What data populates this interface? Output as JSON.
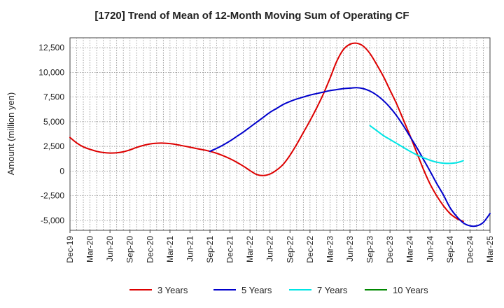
{
  "chart_data": {
    "type": "line",
    "title": "[1720]  Trend of Mean of 12-Month Moving Sum of Operating CF",
    "xlabel": "",
    "ylabel": "Amount (million yen)",
    "ylim": [
      -6000,
      13500
    ],
    "yticks": [
      12500,
      10000,
      7500,
      5000,
      2500,
      0,
      -2500,
      -5000
    ],
    "ytick_labels": [
      "12,500",
      "10,000",
      "7,500",
      "5,000",
      "2,500",
      "0",
      "-2,500",
      "-5,000"
    ],
    "xticks": [
      "Dec-19",
      "Mar-20",
      "Jun-20",
      "Sep-20",
      "Dec-20",
      "Mar-21",
      "Jun-21",
      "Sep-21",
      "Dec-21",
      "Mar-22",
      "Jun-22",
      "Sep-22",
      "Dec-22",
      "Mar-23",
      "Jun-23",
      "Sep-23",
      "Dec-23",
      "Mar-24",
      "Jun-24",
      "Sep-24",
      "Dec-24",
      "Mar-25"
    ],
    "grid": true,
    "legend_position": "bottom",
    "series": [
      {
        "name": "3 Years",
        "color": "#dd0000",
        "start_index": 0,
        "values": [
          3400,
          2850,
          2450,
          2200,
          2000,
          1880,
          1830,
          1850,
          1950,
          2150,
          2400,
          2600,
          2750,
          2820,
          2830,
          2780,
          2680,
          2550,
          2420,
          2280,
          2150,
          2000,
          1800,
          1550,
          1250,
          900,
          500,
          50,
          -350,
          -450,
          -300,
          100,
          700,
          1600,
          2700,
          3900,
          5100,
          6400,
          7800,
          9400,
          11100,
          12300,
          12850,
          12950,
          12650,
          11900,
          10800,
          9600,
          8200,
          6800,
          5200,
          3600,
          1900,
          200,
          -1300,
          -2500,
          -3500,
          -4300,
          -4800,
          -5100
        ]
      },
      {
        "name": "5 Years",
        "color": "#0000cc",
        "start_index": 21,
        "values": [
          2000,
          2300,
          2650,
          3050,
          3500,
          3950,
          4450,
          4950,
          5450,
          5950,
          6350,
          6750,
          7050,
          7300,
          7500,
          7700,
          7850,
          8000,
          8150,
          8250,
          8350,
          8400,
          8450,
          8350,
          8100,
          7700,
          7150,
          6450,
          5600,
          4600,
          3500,
          2400,
          1200,
          0,
          -1250,
          -2400,
          -3700,
          -4600,
          -5250,
          -5550,
          -5550,
          -5200,
          -4300
        ]
      },
      {
        "name": "7 Years",
        "color": "#00e5e5",
        "start_index": 45,
        "values": [
          4600,
          4100,
          3600,
          3200,
          2800,
          2400,
          2000,
          1650,
          1350,
          1100,
          900,
          800,
          780,
          850,
          1050
        ]
      },
      {
        "name": "10 Years",
        "color": "#008800",
        "start_index": 0,
        "values": []
      }
    ]
  }
}
